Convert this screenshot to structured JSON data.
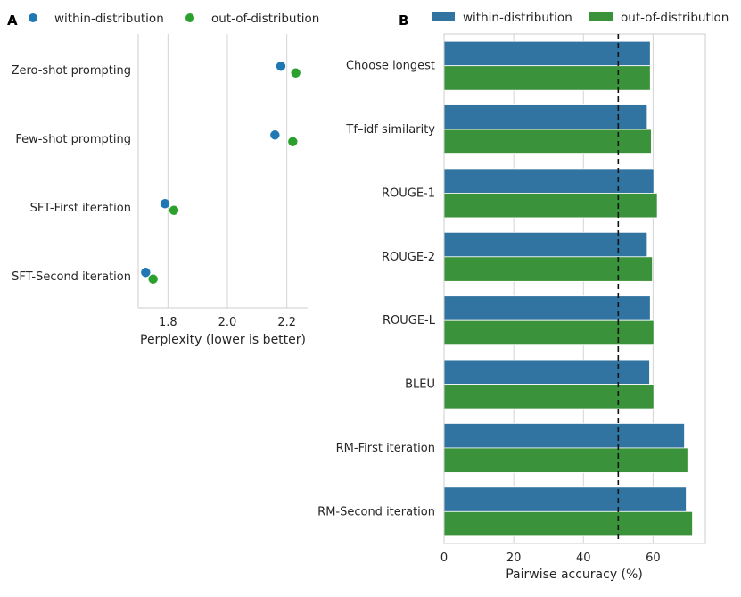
{
  "chart_data": [
    {
      "panel": "A",
      "type": "scatter",
      "title": "",
      "xlabel": "Perplexity (lower is better)",
      "ylabel": "",
      "xlim": [
        1.7,
        2.27
      ],
      "xticks": [
        1.8,
        2.0,
        2.2
      ],
      "xtick_labels": [
        "1.8",
        "2.0",
        "2.2"
      ],
      "grid": "vertical",
      "legend_position": "top",
      "categories": [
        "Zero-shot prompting",
        "Few-shot prompting",
        "SFT-First iteration",
        "SFT-Second iteration"
      ],
      "series": [
        {
          "name": "within-distribution",
          "color": "#1f77b4",
          "values": [
            2.18,
            2.16,
            1.79,
            1.725
          ]
        },
        {
          "name": "out-of-distribution",
          "color": "#2ca02c",
          "values": [
            2.23,
            2.22,
            1.82,
            1.75
          ]
        }
      ]
    },
    {
      "panel": "B",
      "type": "bar",
      "orientation": "horizontal",
      "title": "",
      "xlabel": "Pairwise accuracy (%)",
      "ylabel": "",
      "xlim": [
        0,
        75
      ],
      "xticks": [
        0,
        20,
        40,
        60
      ],
      "xtick_labels": [
        "0",
        "20",
        "40",
        "60"
      ],
      "grid": "vertical",
      "legend_position": "top",
      "reference_line": {
        "value": 50,
        "style": "dashed"
      },
      "categories": [
        "Choose longest",
        "Tf–idf similarity",
        "ROUGE-1",
        "ROUGE-2",
        "ROUGE-L",
        "BLEU",
        "RM-First iteration",
        "RM-Second iteration"
      ],
      "series": [
        {
          "name": "within-distribution",
          "color": "#3274a1",
          "values": [
            59.2,
            58.3,
            60.2,
            58.3,
            59.2,
            59.0,
            69.0,
            69.5
          ]
        },
        {
          "name": "out-of-distribution",
          "color": "#3a923a",
          "values": [
            59.2,
            59.5,
            61.2,
            59.8,
            60.2,
            60.2,
            70.2,
            71.3
          ]
        }
      ]
    }
  ]
}
